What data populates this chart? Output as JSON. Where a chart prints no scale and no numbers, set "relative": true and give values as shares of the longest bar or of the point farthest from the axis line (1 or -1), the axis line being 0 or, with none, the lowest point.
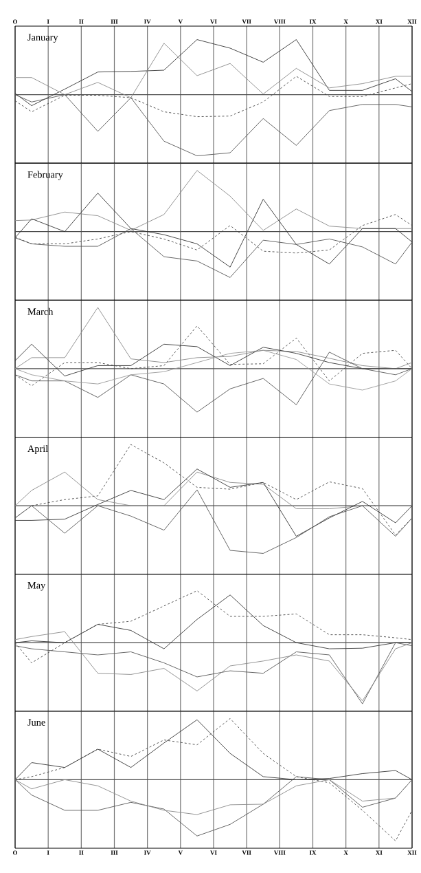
{
  "chart_data": [
    {
      "type": "line",
      "title": "January",
      "relative": true,
      "grid": "x",
      "tick_labels": "x",
      "categories": [
        "O",
        null,
        "I",
        null,
        "II",
        null,
        "III",
        null,
        "IV",
        null,
        "V",
        null,
        "VI",
        null,
        "VII",
        null,
        "VIII",
        null,
        "IX",
        null,
        "X",
        null,
        "XI",
        null,
        "XII"
      ],
      "series": [
        {
          "color": "#333333",
          "values": [
            0.02,
            -0.18,
            null,
            0.09,
            null,
            0.37,
            null,
            0.38,
            null,
            0.4,
            null,
            0.9,
            null,
            0.76,
            null,
            0.53,
            null,
            0.9,
            null,
            0.07,
            null,
            0.07,
            null,
            0.26,
            0.05
          ]
        },
        {
          "color": "#888888",
          "values": [
            0.28,
            0.28,
            null,
            0,
            null,
            0.2,
            null,
            -0.05,
            null,
            0.84,
            null,
            0.31,
            null,
            0.51,
            null,
            0.01,
            null,
            0.43,
            null,
            0.11,
            null,
            0.18,
            null,
            0.3,
            0.3
          ]
        },
        {
          "color": "#444444",
          "line_style": "dashed",
          "values": [
            -0.1,
            -0.28,
            null,
            -0.01,
            null,
            -0.01,
            null,
            -0.05,
            null,
            -0.28,
            null,
            -0.36,
            null,
            -0.35,
            null,
            -0.12,
            null,
            0.3,
            null,
            -0.03,
            null,
            -0.03,
            null,
            0.11,
            0.18
          ]
        },
        {
          "color": "#555555",
          "values": [
            0,
            -0.12,
            null,
            0,
            null,
            -0.6,
            null,
            -0.05,
            null,
            -0.76,
            null,
            -1,
            null,
            -0.95,
            null,
            -0.39,
            null,
            -0.83,
            null,
            -0.26,
            null,
            -0.16,
            null,
            -0.16,
            -0.2
          ]
        }
      ]
    },
    {
      "type": "line",
      "title": "February",
      "relative": true,
      "grid": "x",
      "tick_labels": false,
      "categories": [
        null,
        null,
        null,
        null,
        null,
        null,
        null,
        null,
        null,
        null,
        null,
        null,
        null,
        null,
        null,
        null,
        null,
        null,
        null,
        null,
        null,
        null,
        null,
        null,
        null
      ],
      "series": [
        {
          "color": "#888888",
          "values": [
            0.18,
            0.19,
            null,
            0.32,
            null,
            0.26,
            null,
            0.02,
            null,
            0.28,
            null,
            1,
            null,
            0.58,
            null,
            0.02,
            null,
            0.37,
            null,
            0.09,
            null,
            0.05,
            null,
            0.05,
            0.05
          ]
        },
        {
          "color": "#333333",
          "values": [
            -0.1,
            0.21,
            null,
            0,
            null,
            0.63,
            null,
            0.05,
            null,
            -0.05,
            null,
            -0.2,
            null,
            -0.58,
            null,
            0.53,
            null,
            -0.21,
            null,
            -0.53,
            null,
            0.05,
            null,
            0.05,
            -0.17
          ]
        },
        {
          "color": "#444444",
          "line_style": "dashed",
          "values": [
            -0.09,
            -0.2,
            null,
            -0.2,
            null,
            -0.12,
            null,
            0,
            null,
            -0.12,
            null,
            -0.3,
            null,
            0.1,
            null,
            -0.32,
            null,
            -0.35,
            null,
            -0.3,
            null,
            0.1,
            null,
            0.28,
            0.1
          ]
        },
        {
          "color": "#555555",
          "values": [
            -0.1,
            -0.2,
            null,
            -0.24,
            null,
            -0.24,
            null,
            0.05,
            null,
            -0.41,
            null,
            -0.48,
            null,
            -0.75,
            null,
            -0.14,
            null,
            -0.21,
            null,
            -0.12,
            null,
            -0.25,
            null,
            -0.53,
            -0.17
          ]
        }
      ]
    },
    {
      "type": "line",
      "title": "March",
      "relative": true,
      "grid": "x",
      "tick_labels": false,
      "categories": [
        null,
        null,
        null,
        null,
        null,
        null,
        null,
        null,
        null,
        null,
        null,
        null,
        null,
        null,
        null,
        null,
        null,
        null,
        null,
        null,
        null,
        null,
        null,
        null,
        null
      ],
      "series": [
        {
          "color": "#888888",
          "values": [
            0,
            0.18,
            null,
            0.18,
            null,
            1,
            null,
            0.16,
            null,
            0.1,
            null,
            0.18,
            null,
            0.2,
            null,
            0.3,
            null,
            0.28,
            null,
            0.17,
            null,
            0.05,
            null,
            0,
            0.1
          ]
        },
        {
          "color": "#333333",
          "values": [
            0.13,
            0.4,
            null,
            -0.12,
            null,
            0.05,
            null,
            0.05,
            null,
            0.4,
            null,
            0.36,
            null,
            0.05,
            null,
            0.35,
            null,
            0.25,
            null,
            0.1,
            null,
            0,
            null,
            0,
            0
          ]
        },
        {
          "color": "#444444",
          "line_style": "dashed",
          "values": [
            -0.1,
            -0.28,
            null,
            0.1,
            null,
            0.1,
            null,
            0,
            null,
            0.05,
            null,
            0.7,
            null,
            0.07,
            null,
            0.08,
            null,
            0.5,
            null,
            -0.2,
            null,
            0.25,
            null,
            0.3,
            0
          ]
        },
        {
          "color": "#555555",
          "values": [
            -0.1,
            -0.2,
            null,
            -0.2,
            null,
            -0.47,
            null,
            -0.1,
            null,
            -0.25,
            null,
            -0.71,
            null,
            -0.33,
            null,
            -0.16,
            null,
            -0.59,
            null,
            0.27,
            null,
            0,
            null,
            -0.1,
            0
          ]
        },
        {
          "color": "#999999",
          "values": [
            0,
            -0.1,
            null,
            -0.2,
            null,
            -0.25,
            null,
            -0.1,
            null,
            -0.05,
            null,
            0.1,
            null,
            0.25,
            null,
            0.3,
            null,
            0.15,
            null,
            -0.25,
            null,
            -0.35,
            null,
            -0.2,
            0
          ]
        }
      ]
    },
    {
      "type": "line",
      "title": "April",
      "relative": true,
      "grid": "x",
      "tick_labels": false,
      "categories": [
        null,
        null,
        null,
        null,
        null,
        null,
        null,
        null,
        null,
        null,
        null,
        null,
        null,
        null,
        null,
        null,
        null,
        null,
        null,
        null,
        null,
        null,
        null,
        null,
        null
      ],
      "series": [
        {
          "color": "#444444",
          "line_style": "dashed",
          "values": [
            -0.2,
            0,
            null,
            0.1,
            null,
            0.16,
            null,
            1,
            null,
            0.7,
            null,
            0.3,
            null,
            0.27,
            null,
            0.38,
            null,
            0.1,
            null,
            0.39,
            null,
            0.28,
            null,
            -0.48,
            -0.2
          ]
        },
        {
          "color": "#888888",
          "values": [
            0,
            0.25,
            null,
            0.55,
            null,
            0.1,
            null,
            0,
            null,
            0,
            null,
            0.55,
            null,
            0.38,
            null,
            0.35,
            null,
            -0.05,
            null,
            -0.05,
            null,
            0,
            null,
            0,
            0
          ]
        },
        {
          "color": "#333333",
          "values": [
            -0.24,
            -0.24,
            null,
            -0.22,
            null,
            0.02,
            null,
            0.25,
            null,
            0.1,
            null,
            0.6,
            null,
            0.3,
            null,
            0.38,
            null,
            -0.5,
            null,
            -0.2,
            null,
            0.07,
            null,
            -0.28,
            0
          ]
        },
        {
          "color": "#555555",
          "values": [
            -0.2,
            0,
            null,
            -0.45,
            null,
            0,
            null,
            -0.17,
            null,
            -0.4,
            null,
            0.26,
            null,
            -0.73,
            null,
            -0.78,
            null,
            -0.52,
            null,
            -0.18,
            null,
            0,
            null,
            -0.5,
            -0.2
          ]
        }
      ]
    },
    {
      "type": "line",
      "title": "May",
      "relative": true,
      "grid": "x",
      "tick_labels": false,
      "categories": [
        null,
        null,
        null,
        null,
        null,
        null,
        null,
        null,
        null,
        null,
        null,
        null,
        null,
        null,
        null,
        null,
        null,
        null,
        null,
        null,
        null,
        null,
        null,
        null,
        null
      ],
      "series": [
        {
          "color": "#444444",
          "line_style": "dashed",
          "values": [
            0,
            -0.33,
            null,
            0,
            null,
            0.3,
            null,
            0.35,
            null,
            0.6,
            null,
            0.85,
            null,
            0.43,
            null,
            0.43,
            null,
            0.47,
            null,
            0.13,
            null,
            0.13,
            null,
            0.08,
            0.05
          ]
        },
        {
          "color": "#333333",
          "values": [
            0,
            0.03,
            null,
            0,
            null,
            0.3,
            null,
            0.2,
            null,
            -0.1,
            null,
            0.38,
            null,
            0.78,
            null,
            0.28,
            null,
            0,
            null,
            -0.1,
            null,
            -0.09,
            null,
            0,
            0
          ]
        },
        {
          "color": "#555555",
          "values": [
            -0.05,
            -0.1,
            null,
            -0.15,
            null,
            -0.2,
            null,
            -0.15,
            null,
            -0.33,
            null,
            -0.56,
            null,
            -0.46,
            null,
            -0.5,
            null,
            -0.15,
            null,
            -0.2,
            null,
            -1,
            null,
            0,
            -0.05
          ]
        },
        {
          "color": "#888888",
          "values": [
            0.05,
            0.1,
            null,
            0.18,
            null,
            -0.5,
            null,
            -0.52,
            null,
            -0.42,
            null,
            -0.79,
            null,
            -0.38,
            null,
            -0.3,
            null,
            -0.2,
            null,
            -0.3,
            null,
            -0.95,
            null,
            -0.1,
            0
          ]
        }
      ]
    },
    {
      "type": "line",
      "title": "June",
      "relative": true,
      "grid": "x",
      "tick_labels": "x",
      "categories": [
        "O",
        null,
        "I",
        null,
        "II",
        null,
        "III",
        null,
        "IV",
        null,
        "V",
        null,
        "VI",
        null,
        "VII",
        null,
        "VIII",
        null,
        "IX",
        null,
        "X",
        null,
        "XI",
        null,
        "XII"
      ],
      "series": [
        {
          "color": "#333333",
          "values": [
            0,
            0.28,
            null,
            0.2,
            null,
            0.5,
            null,
            0.2,
            null,
            0.6,
            null,
            0.98,
            null,
            0.43,
            null,
            0.05,
            null,
            0,
            null,
            0.02,
            null,
            0.1,
            null,
            0.15,
            0
          ]
        },
        {
          "color": "#444444",
          "line_style": "dashed",
          "values": [
            0,
            0.05,
            null,
            0.2,
            null,
            0.5,
            null,
            0.38,
            null,
            0.65,
            null,
            0.57,
            null,
            1,
            null,
            0.43,
            null,
            0.05,
            null,
            -0.05,
            null,
            -0.5,
            null,
            -1,
            -0.5
          ]
        },
        {
          "color": "#555555",
          "values": [
            0,
            -0.25,
            null,
            -0.5,
            null,
            -0.5,
            null,
            -0.37,
            null,
            -0.48,
            null,
            -0.92,
            null,
            -0.73,
            null,
            -0.4,
            null,
            0.05,
            null,
            0,
            null,
            -0.45,
            null,
            -0.3,
            0
          ]
        },
        {
          "color": "#888888",
          "values": [
            0,
            -0.15,
            null,
            0,
            null,
            -0.1,
            null,
            -0.35,
            null,
            -0.5,
            null,
            -0.57,
            null,
            -0.41,
            null,
            -0.4,
            null,
            -0.1,
            null,
            0,
            null,
            -0.35,
            null,
            -0.3,
            0
          ]
        }
      ]
    }
  ]
}
